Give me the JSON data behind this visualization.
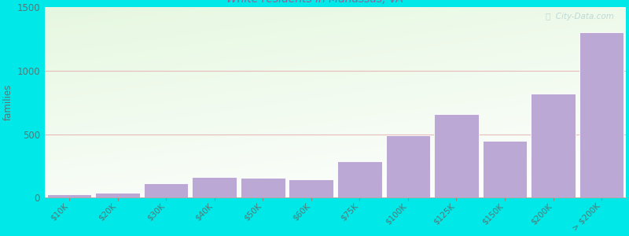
{
  "categories": [
    "$10K",
    "$20K",
    "$30K",
    "$40K",
    "$50K",
    "$60K",
    "$75K",
    "$100K",
    "$125K",
    "$150K",
    "$200K",
    "> $200K"
  ],
  "values": [
    25,
    40,
    115,
    165,
    155,
    145,
    290,
    490,
    660,
    450,
    820,
    1305
  ],
  "bar_color": "#bba8d4",
  "bar_edgecolor": "#ffffff",
  "background_color": "#00e8e8",
  "title_fontsize": 13,
  "subtitle_fontsize": 10,
  "subtitle_color": "#886699",
  "ylabel": "families",
  "ylim": [
    0,
    1500
  ],
  "yticks": [
    0,
    500,
    1000,
    1500
  ],
  "grid_color": "#e8bbbb",
  "watermark": "ⓘ  City-Data.com"
}
